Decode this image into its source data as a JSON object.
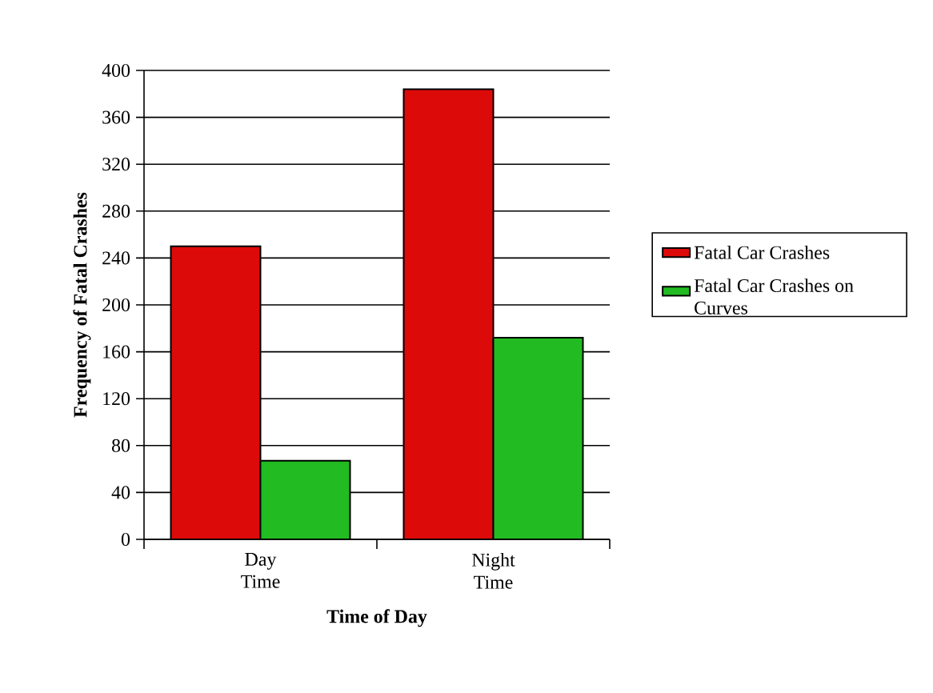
{
  "chart_data": {
    "type": "bar",
    "xlabel": "Time of Day",
    "ylabel": "Frequency of Fatal Crashes",
    "categories": [
      "Day Time",
      "Night Time"
    ],
    "series": [
      {
        "name": "Fatal Car Crashes",
        "color": "#dd0a0a",
        "values": [
          250,
          384
        ]
      },
      {
        "name": "Fatal Car Crashes on Curves",
        "color": "#22bb22",
        "values": [
          67,
          172
        ]
      }
    ],
    "ylim": [
      0,
      400
    ],
    "yticks": [
      0,
      40,
      80,
      120,
      160,
      200,
      240,
      280,
      320,
      360,
      400
    ],
    "grid": "y",
    "legend": "right"
  }
}
